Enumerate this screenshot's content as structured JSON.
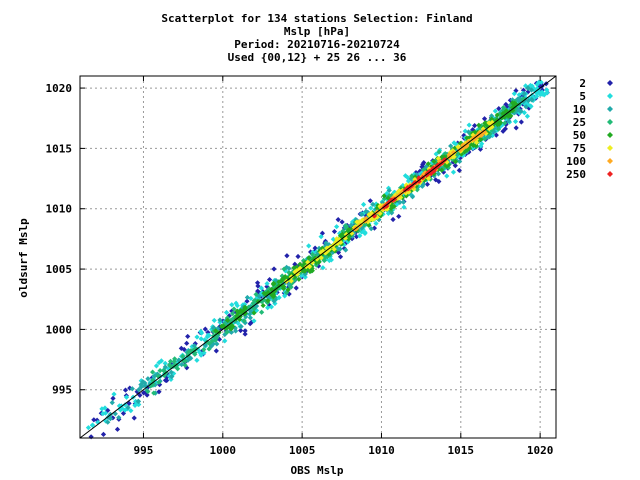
{
  "chart_data": {
    "type": "scatter",
    "title_lines": [
      "Scatterplot for  134 stations Selection: Finland",
      "Mslp [hPa]",
      "Period: 20210716-20210724",
      "Used {00,12} + 25 26 ... 36"
    ],
    "xlabel": "OBS Mslp",
    "ylabel": "oldsurf Mslp",
    "xlim": [
      991,
      1021
    ],
    "ylim": [
      991,
      1021
    ],
    "xticks": [
      995,
      1000,
      1005,
      1010,
      1015,
      1020
    ],
    "yticks": [
      995,
      1000,
      1005,
      1010,
      1015,
      1020
    ],
    "grid": true,
    "legend_position": "right",
    "diagonal_reference_line": true,
    "density_bins": [
      {
        "label": "2",
        "color": "#2222aa",
        "spread": 1.1,
        "xrange": [
          991.5,
          1020.5
        ]
      },
      {
        "label": "5",
        "color": "#22dddd",
        "spread": 0.85,
        "xrange": [
          991.5,
          1020.5
        ]
      },
      {
        "label": "10",
        "color": "#22aaaa",
        "spread": 0.7,
        "xrange": [
          992.5,
          1019.5
        ]
      },
      {
        "label": "25",
        "color": "#22bb77",
        "spread": 0.55,
        "xrange": [
          995.0,
          1019.0
        ]
      },
      {
        "label": "50",
        "color": "#22aa22",
        "spread": 0.45,
        "xrange": [
          999.0,
          1018.5
        ]
      },
      {
        "label": "75",
        "color": "#eeee22",
        "spread": 0.28,
        "xrange": [
          1004.0,
          1017.0
        ]
      },
      {
        "label": "100",
        "color": "#ffaa22",
        "spread": 0.18,
        "xrange": [
          1008.0,
          1016.5
        ]
      },
      {
        "label": "250",
        "color": "#ee2222",
        "spread": 0.12,
        "xrange": [
          1009.5,
          1014.5
        ]
      }
    ]
  }
}
